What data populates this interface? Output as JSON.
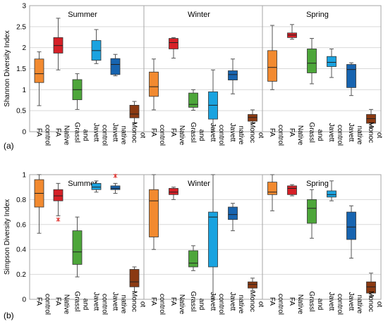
{
  "chart_data": [
    {
      "type": "box",
      "panel_label": "(a)",
      "ylabel": "Shannon Diversity Index",
      "ylim": [
        0,
        3
      ],
      "yticks": [
        "0",
        "0.5",
        "1",
        "1.5",
        "2",
        "2.5",
        "3"
      ],
      "grid": true,
      "categories": [
        "FA control",
        "FA Native",
        "Grassland",
        "Javett control",
        "Javett native",
        "Monocot"
      ],
      "category_tick_labels": [
        [
          "FA",
          "control"
        ],
        [
          "FA",
          "Native"
        ],
        [
          "Grassl",
          "and"
        ],
        [
          "Javett",
          "control"
        ],
        [
          "Javett",
          "native"
        ],
        [
          "Monoc",
          "ot"
        ]
      ],
      "groups": [
        {
          "name": "Summer",
          "boxes": [
            {
              "category": "FA control",
              "min": 0.62,
              "q1": 1.17,
              "median": 1.38,
              "q3": 1.73,
              "max": 1.9
            },
            {
              "category": "FA Native",
              "min": 1.47,
              "q1": 1.87,
              "median": 2.05,
              "q3": 2.24,
              "max": 2.7
            },
            {
              "category": "Grassland",
              "min": 0.53,
              "q1": 0.76,
              "median": 1.0,
              "q3": 1.24,
              "max": 1.38
            },
            {
              "category": "Javett control",
              "min": 1.62,
              "q1": 1.7,
              "median": 1.93,
              "q3": 2.17,
              "max": 2.43
            },
            {
              "category": "Javett native",
              "min": 1.33,
              "q1": 1.36,
              "median": 1.6,
              "q3": 1.74,
              "max": 1.84
            },
            {
              "category": "Monocot",
              "min": 0.2,
              "q1": 0.33,
              "median": 0.42,
              "q3": 0.63,
              "max": 0.72
            }
          ]
        },
        {
          "name": "Winter",
          "boxes": [
            {
              "category": "FA control",
              "min": 0.52,
              "q1": 0.84,
              "median": 1.07,
              "q3": 1.42,
              "max": 1.73
            },
            {
              "category": "FA Native",
              "min": 1.75,
              "q1": 1.97,
              "median": 2.12,
              "q3": 2.22,
              "max": 2.24
            },
            {
              "category": "Grassland",
              "min": 0.51,
              "q1": 0.58,
              "median": 0.65,
              "q3": 0.92,
              "max": 1.0
            },
            {
              "category": "Javett control",
              "min": 0.01,
              "q1": 0.3,
              "median": 0.63,
              "q3": 0.95,
              "max": 1.47
            },
            {
              "category": "Javett native",
              "min": 0.9,
              "q1": 1.23,
              "median": 1.36,
              "q3": 1.45,
              "max": 1.73
            },
            {
              "category": "Monocot",
              "min": 0.2,
              "q1": 0.25,
              "median": 0.34,
              "q3": 0.41,
              "max": 0.52
            }
          ]
        },
        {
          "name": "Spring",
          "boxes": [
            {
              "category": "FA control",
              "min": 1.0,
              "q1": 1.2,
              "median": 1.53,
              "q3": 1.93,
              "max": 2.53
            },
            {
              "category": "FA Native",
              "min": 2.2,
              "q1": 2.24,
              "median": 2.3,
              "q3": 2.35,
              "max": 2.55
            },
            {
              "category": "Grassland",
              "min": 1.14,
              "q1": 1.4,
              "median": 1.63,
              "q3": 1.97,
              "max": 2.22
            },
            {
              "category": "Javett control",
              "min": 1.29,
              "q1": 1.55,
              "median": 1.65,
              "q3": 1.79,
              "max": 1.97
            },
            {
              "category": "Javett native",
              "min": 0.86,
              "q1": 1.05,
              "median": 1.48,
              "q3": 1.6,
              "max": 1.64
            },
            {
              "category": "Monocot",
              "min": 0.1,
              "q1": 0.2,
              "median": 0.31,
              "q3": 0.41,
              "max": 0.53
            }
          ]
        }
      ]
    },
    {
      "type": "box",
      "panel_label": "(b)",
      "ylabel": "Simpson Diversity Index",
      "ylim": [
        0,
        1
      ],
      "yticks": [
        "0",
        "0.2",
        "0.4",
        "0.6",
        "0.8",
        "1"
      ],
      "grid": true,
      "categories": [
        "FA control",
        "FA Native",
        "Grassland",
        "Javett control",
        "Javett native",
        "Monocot"
      ],
      "category_tick_labels": [
        [
          "FA",
          "control"
        ],
        [
          "FA",
          "Native"
        ],
        [
          "Grassl",
          "and"
        ],
        [
          "Javett",
          "control"
        ],
        [
          "Javett",
          "native"
        ],
        [
          "Monoc",
          "ot"
        ]
      ],
      "groups": [
        {
          "name": "Summer",
          "boxes": [
            {
              "category": "FA control",
              "min": 0.53,
              "q1": 0.74,
              "median": 0.85,
              "q3": 0.96,
              "max": 1.0
            },
            {
              "category": "FA Native",
              "min": 0.67,
              "q1": 0.79,
              "median": 0.83,
              "q3": 0.88,
              "max": 0.93,
              "outliers": [
                0.64
              ]
            },
            {
              "category": "Grassland",
              "min": 0.18,
              "q1": 0.28,
              "median": 0.38,
              "q3": 0.55,
              "max": 0.66
            },
            {
              "category": "Javett control",
              "min": 0.86,
              "q1": 0.88,
              "median": 0.9,
              "q3": 0.93,
              "max": 0.95
            },
            {
              "category": "Javett native",
              "min": 0.85,
              "q1": 0.88,
              "median": 0.89,
              "q3": 0.91,
              "max": 0.93,
              "outliers": [
                0.99
              ]
            },
            {
              "category": "Monocot",
              "min": 0.06,
              "q1": 0.1,
              "median": 0.14,
              "q3": 0.24,
              "max": 0.26
            }
          ]
        },
        {
          "name": "Winter",
          "boxes": [
            {
              "category": "FA control",
              "min": 0.4,
              "q1": 0.5,
              "median": 0.79,
              "q3": 0.88,
              "max": 1.0
            },
            {
              "category": "FA Native",
              "min": 0.8,
              "q1": 0.84,
              "median": 0.86,
              "q3": 0.89,
              "max": 0.9
            },
            {
              "category": "Grassland",
              "min": 0.23,
              "q1": 0.26,
              "median": 0.29,
              "q3": 0.39,
              "max": 0.43
            },
            {
              "category": "Javett control",
              "min": 0.0,
              "q1": 0.26,
              "median": 0.66,
              "q3": 0.7,
              "max": 1.0
            },
            {
              "category": "Javett native",
              "min": 0.55,
              "q1": 0.64,
              "median": 0.68,
              "q3": 0.74,
              "max": 0.77
            },
            {
              "category": "Monocot",
              "min": 0.07,
              "q1": 0.09,
              "median": 0.12,
              "q3": 0.14,
              "max": 0.17
            }
          ]
        },
        {
          "name": "Spring",
          "boxes": [
            {
              "category": "FA control",
              "min": 0.71,
              "q1": 0.84,
              "median": 0.86,
              "q3": 0.94,
              "max": 1.0
            },
            {
              "category": "FA Native",
              "min": 0.83,
              "q1": 0.84,
              "median": 0.89,
              "q3": 0.91,
              "max": 0.92
            },
            {
              "category": "Grassland",
              "min": 0.49,
              "q1": 0.61,
              "median": 0.73,
              "q3": 0.8,
              "max": 0.88
            },
            {
              "category": "Javett control",
              "min": 0.79,
              "q1": 0.82,
              "median": 0.84,
              "q3": 0.87,
              "max": 0.95
            },
            {
              "category": "Javett native",
              "min": 0.33,
              "q1": 0.48,
              "median": 0.58,
              "q3": 0.7,
              "max": 0.75
            },
            {
              "category": "Monocot",
              "min": 0.02,
              "q1": 0.05,
              "median": 0.1,
              "q3": 0.14,
              "max": 0.21
            }
          ]
        }
      ]
    }
  ],
  "colors": {
    "FA control": "#f28a30",
    "FA Native": "#d62027",
    "Grassland": "#4da63a",
    "Javett control": "#1aa3e0",
    "Javett native": "#1764b0",
    "Monocot": "#8b3a12",
    "outlier": "#e0302c",
    "grid": "#d9d9d9",
    "frame": "#a6a6a6"
  }
}
